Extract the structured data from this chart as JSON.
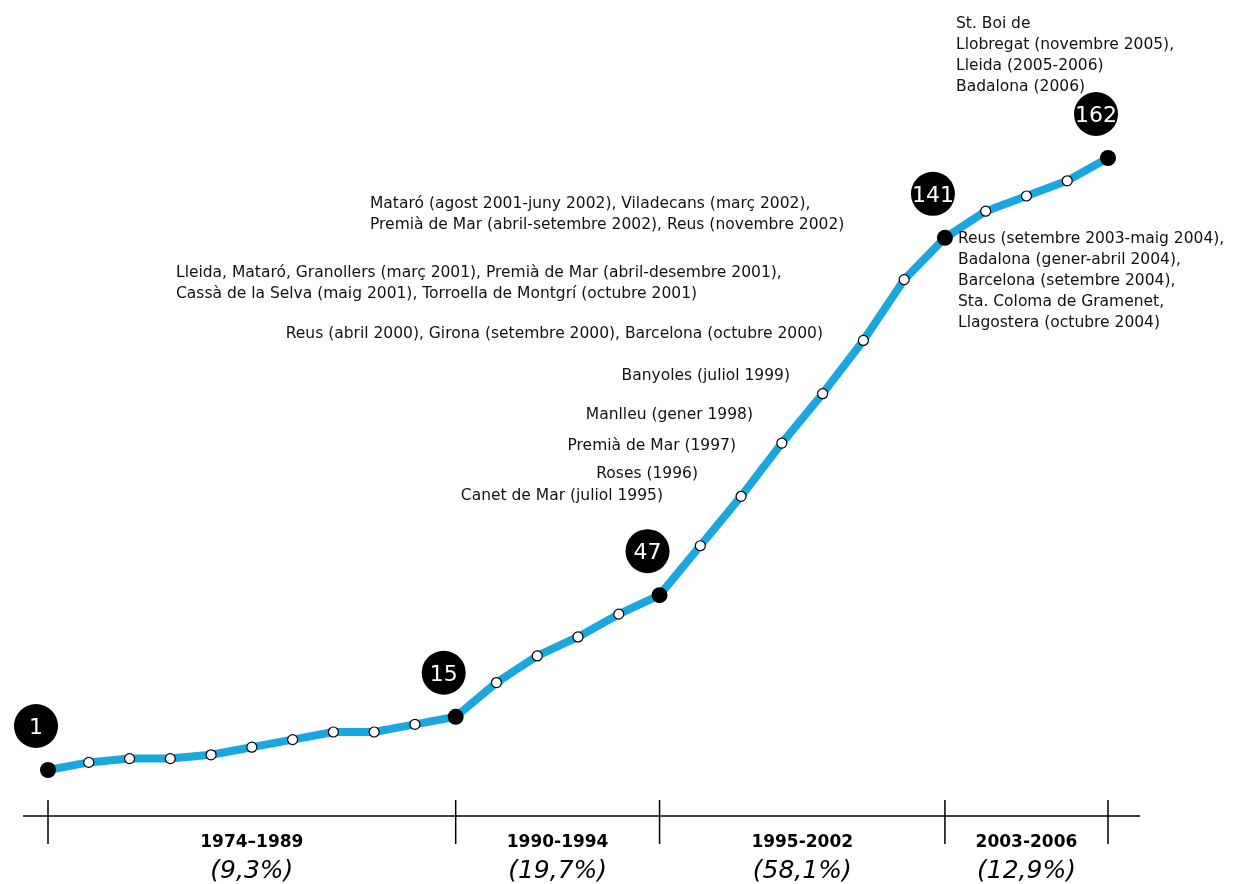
{
  "chart_data": {
    "type": "line",
    "categories": [
      null,
      null,
      null,
      null,
      null,
      null,
      null,
      null,
      null,
      null,
      null,
      null,
      null,
      null,
      null,
      null,
      null,
      null,
      null,
      null,
      null,
      null,
      null,
      null,
      null,
      null,
      null
    ],
    "series": [
      {
        "color": "#1aa7e0",
        "values": [
          1,
          3,
          4,
          4,
          5,
          7,
          9,
          11,
          11,
          13,
          15,
          24,
          31,
          36,
          42,
          47,
          60,
          73,
          87,
          100,
          114,
          130,
          141,
          148,
          152,
          156,
          162
        ],
        "value_labels": [
          "1",
          null,
          null,
          null,
          null,
          null,
          null,
          null,
          null,
          null,
          "15",
          null,
          null,
          null,
          null,
          "47",
          null,
          null,
          null,
          null,
          null,
          null,
          "141",
          null,
          null,
          null,
          "162"
        ]
      }
    ],
    "marker": "circle",
    "line_style": "solid",
    "tick_labels": "x",
    "annotations": [
      "1974–1989\n(9,3%)",
      "1990-1994\n(19,7%)",
      "1995-2002\n(58,1%)",
      "2003-2006\n(12,9%)",
      "Canet de Mar (juliol 1995)",
      "Roses (1996)",
      "Premià de Mar (1997)",
      "Manlleu (gener 1998)",
      "Banyoles (juliol 1999)",
      "Reus (abril 2000), Girona (setembre 2000), Barcelona (octubre 2000)",
      "Lleida, Mataró, Granollers (març 2001), Premià de Mar (abril-desembre 2001),\nCassà de la Selva (maig 2001), Torroella de Montgrí (octubre 2001)",
      "Mataró (agost 2001-juny 2002), Viladecans (març 2002),\nPremià de Mar (abril-setembre 2002), Reus (novembre 2002)",
      "Reus (setembre 2003-maig 2004),\nBadalona (gener-abril 2004),\nBarcelona (setembre 2004),\nSta. Coloma de Gramenet,\nLlagostera (octubre 2004)",
      "St. Boi de\nLlobregat (novembre 2005),\nLleida (2005-2006)\nBadalona (2006)"
    ]
  }
}
